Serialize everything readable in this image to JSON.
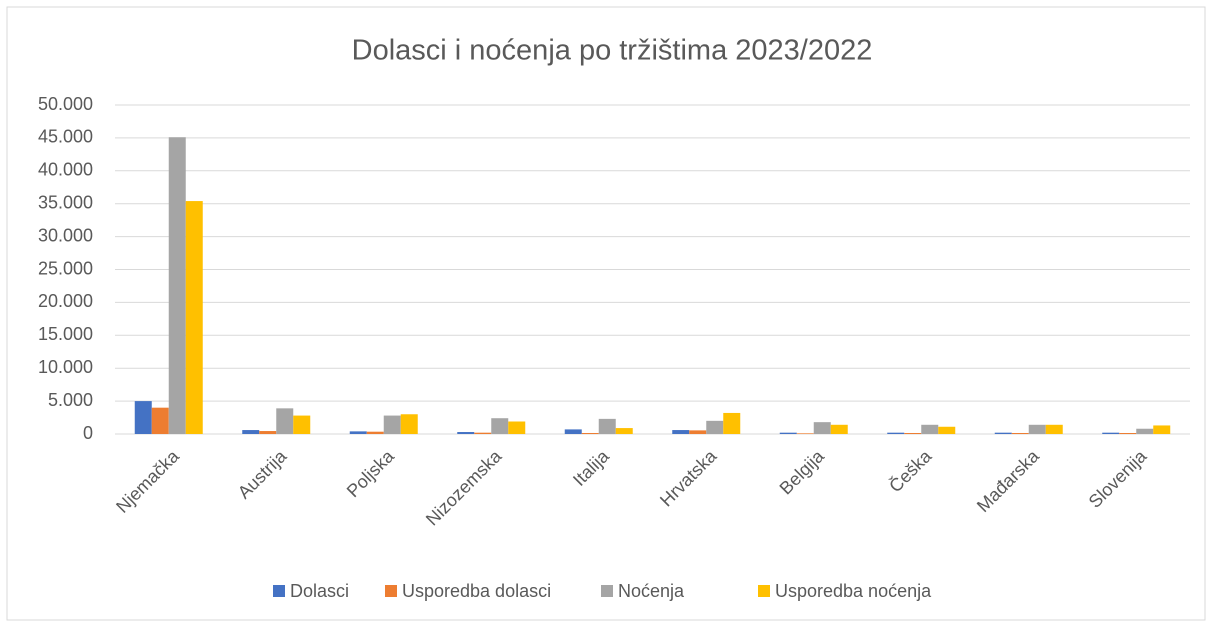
{
  "chart_data": {
    "type": "bar",
    "title": "Dolasci i noćenja po tržištima 2023/2022",
    "categories": [
      "Njemačka",
      "Austrija",
      "Poljska",
      "Nizozemska",
      "Italija",
      "Hrvatska",
      "Belgija",
      "Češka",
      "Mađarska",
      "Slovenija"
    ],
    "series": [
      {
        "name": "Dolasci",
        "color": "#4472c4",
        "values": [
          5000,
          600,
          400,
          300,
          700,
          600,
          200,
          200,
          200,
          200
        ]
      },
      {
        "name": "Usporedba dolasci",
        "color": "#ed7d31",
        "values": [
          4000,
          450,
          350,
          200,
          150,
          550,
          100,
          150,
          150,
          150
        ]
      },
      {
        "name": "Noćenja",
        "color": "#a5a5a5",
        "values": [
          45100,
          3900,
          2800,
          2400,
          2300,
          2000,
          1800,
          1400,
          1400,
          800
        ]
      },
      {
        "name": "Usporedba noćenja",
        "color": "#ffc000",
        "values": [
          35400,
          2800,
          3000,
          1900,
          900,
          3200,
          1400,
          1100,
          1400,
          1300
        ]
      }
    ],
    "ylim": [
      0,
      50000
    ],
    "yticks": [
      0,
      {
        "value": 5000,
        "label": "5.000"
      },
      {
        "value": 10000,
        "label": "10.000"
      },
      {
        "value": 15000,
        "label": "15.000"
      },
      {
        "value": 20000,
        "label": "20.000"
      },
      {
        "value": 25000,
        "label": "25.000"
      },
      {
        "value": 30000,
        "label": "30.000"
      },
      {
        "value": 35000,
        "label": "35.000"
      },
      {
        "value": 40000,
        "label": "40.000"
      },
      {
        "value": 45000,
        "label": "45.000"
      },
      {
        "value": 50000,
        "label": "50.000"
      }
    ],
    "grid": true,
    "legend": "bottom"
  }
}
